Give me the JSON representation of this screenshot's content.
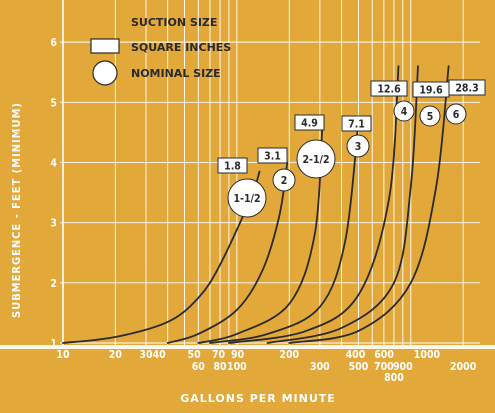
{
  "chart_data": {
    "type": "line",
    "xlabel": "GALLONS PER MINUTE",
    "ylabel": "SUBMERGENCE - FEET (MINIMUM)",
    "x_scale": "log",
    "xlim": [
      10,
      2500
    ],
    "ylim": [
      1,
      6.7
    ],
    "x_tick_labels": [
      "10",
      "20",
      "30",
      "40",
      "50",
      "60",
      "70",
      "80",
      "90",
      "100",
      "200",
      "300",
      "400",
      "500",
      "600",
      "700",
      "800",
      "900",
      "1000",
      "2000"
    ],
    "y_tick_labels": [
      "1",
      "2",
      "3",
      "4",
      "5",
      "6"
    ],
    "legend": {
      "title": "SUCTION SIZE",
      "box_label": "SQUARE INCHES",
      "circle_label": "NOMINAL SIZE"
    },
    "series": [
      {
        "nominal": "1-1/2",
        "square_inches": "1.8",
        "x": [
          10,
          20,
          40,
          60,
          80,
          120,
          135
        ],
        "y": [
          1.0,
          1.1,
          1.35,
          1.75,
          2.3,
          3.4,
          3.85
        ]
      },
      {
        "nominal": "2",
        "square_inches": "3.1",
        "x": [
          40,
          60,
          100,
          140,
          175,
          195
        ],
        "y": [
          1.0,
          1.15,
          1.55,
          2.2,
          3.1,
          4.0
        ]
      },
      {
        "nominal": "2-1/2",
        "square_inches": "4.9",
        "x": [
          60,
          100,
          200,
          280,
          310
        ],
        "y": [
          1.0,
          1.15,
          1.65,
          2.8,
          4.6
        ]
      },
      {
        "nominal": "3",
        "square_inches": "7.1",
        "x": [
          70,
          150,
          300,
          420,
          500
        ],
        "y": [
          1.0,
          1.15,
          1.6,
          2.7,
          4.7
        ]
      },
      {
        "nominal": "4",
        "square_inches": "12.6",
        "x": [
          90,
          250,
          500,
          750,
          850
        ],
        "y": [
          1.0,
          1.2,
          1.8,
          3.4,
          5.6
        ]
      },
      {
        "nominal": "5",
        "square_inches": "19.6",
        "x": [
          150,
          400,
          800,
          1000,
          1100
        ],
        "y": [
          1.0,
          1.25,
          2.0,
          3.6,
          5.6
        ]
      },
      {
        "nominal": "6",
        "square_inches": "28.3",
        "x": [
          200,
          500,
          1000,
          1400,
          1650
        ],
        "y": [
          1.0,
          1.2,
          2.0,
          3.6,
          5.6
        ]
      }
    ],
    "colors": {
      "background": "#e3a83a",
      "grid": "#ffffff",
      "curve": "#2b2b2b",
      "label_fill": "#ffffff",
      "dark_text": "#2a2a2a"
    }
  }
}
